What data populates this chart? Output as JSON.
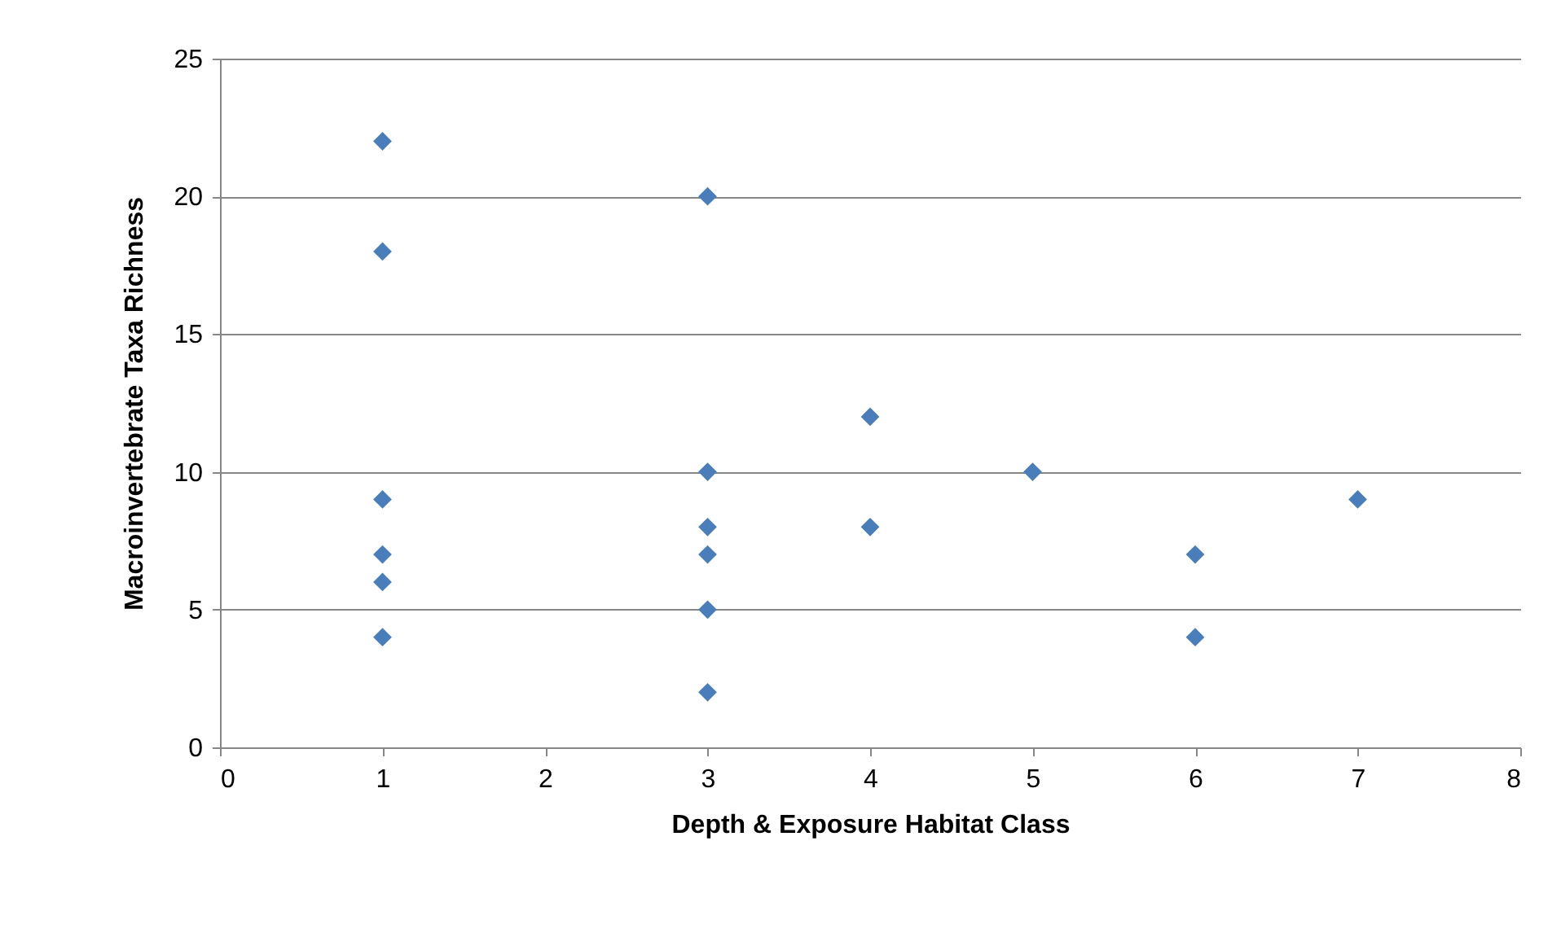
{
  "chart_data": {
    "type": "scatter",
    "xlabel": "Depth & Exposure Habitat Class",
    "ylabel": "Macroinvertebrate Taxa Richness",
    "x": [
      1,
      1,
      1,
      1,
      1,
      1,
      3,
      3,
      3,
      3,
      3,
      3,
      4,
      4,
      5,
      6,
      6,
      7
    ],
    "series": [
      {
        "color": "#4a7ebb",
        "values": [
          22,
          18,
          9,
          7,
          6,
          4,
          20,
          10,
          8,
          7,
          5,
          2,
          12,
          8,
          10,
          7,
          4,
          9
        ]
      }
    ],
    "xlim": [
      0,
      8
    ],
    "xticks": [
      0,
      1,
      2,
      3,
      4,
      5,
      6,
      7,
      8
    ],
    "ylim": [
      0,
      25
    ],
    "yticks": [
      0,
      5,
      10,
      15,
      20,
      25
    ],
    "grid": "y",
    "marker": "diamond"
  }
}
